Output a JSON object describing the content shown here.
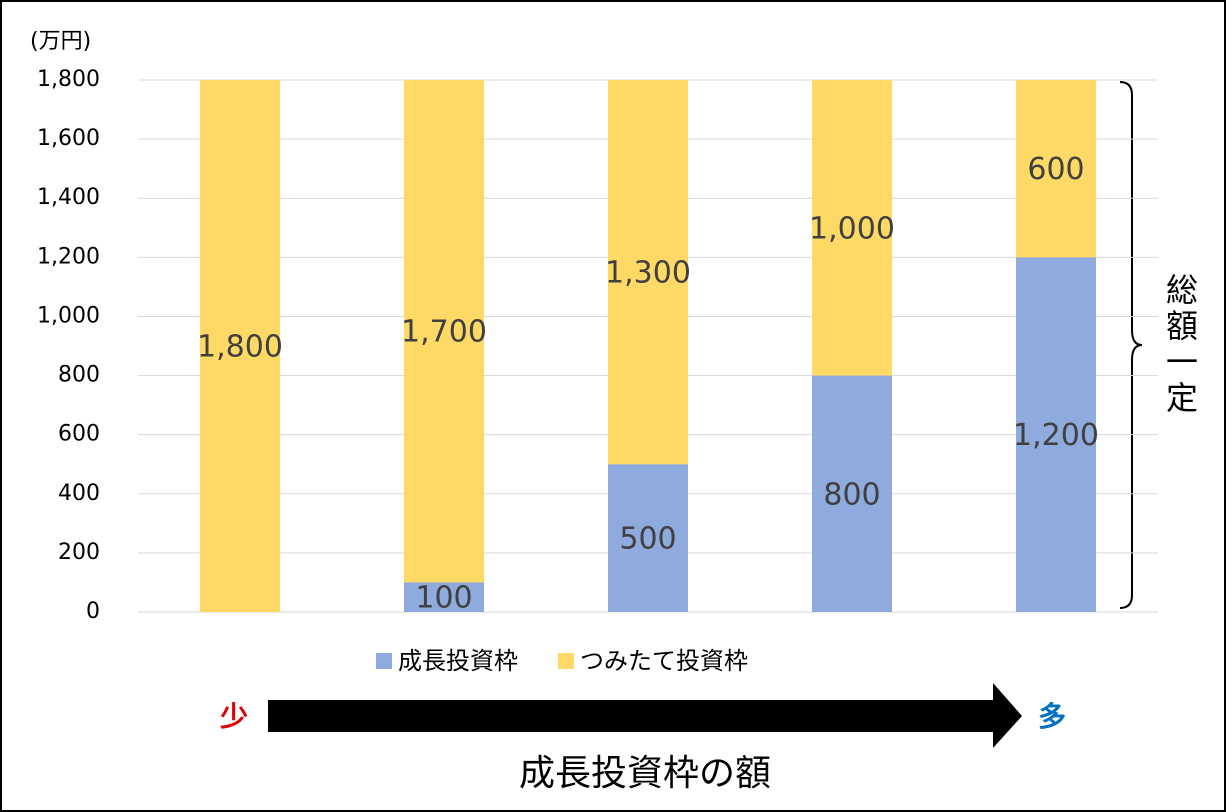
{
  "chart_data": {
    "type": "stacked_bar",
    "unit_label": "(万円)",
    "xlabel": "成長投資枠の額",
    "annotations": {
      "bracket": "総額一定",
      "low": "少",
      "high": "多"
    },
    "categories": [
      null,
      null,
      null,
      null,
      null
    ],
    "series": [
      {
        "name": "成長投資枠",
        "color": "#8faadc",
        "values": [
          0,
          100,
          500,
          800,
          1200
        ],
        "value_labels": [
          null,
          "100",
          "500",
          "800",
          "1,200"
        ]
      },
      {
        "name": "つみたて投資枠",
        "color": "#ffd966",
        "values": [
          1800,
          1700,
          1300,
          1000,
          600
        ],
        "value_labels": [
          "1,800",
          "1,700",
          "1,300",
          "1,000",
          "600"
        ]
      }
    ],
    "ylim": [
      0,
      1800
    ],
    "yticks": [
      0,
      200,
      400,
      600,
      800,
      {
        "value": 1000,
        "label": "1,000"
      },
      {
        "value": 1200,
        "label": "1,200"
      },
      {
        "value": 1400,
        "label": "1,400"
      },
      {
        "value": 1600,
        "label": "1,600"
      },
      {
        "value": 1800,
        "label": "1,800"
      }
    ],
    "grid": true,
    "legend": "bottom"
  }
}
